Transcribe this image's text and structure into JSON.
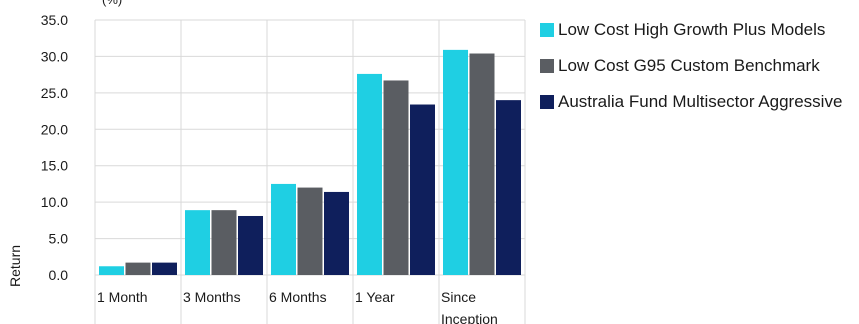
{
  "chart_data": {
    "type": "bar",
    "title": "",
    "title_fragment": "(%)",
    "xlabel": "",
    "ylabel": "Return",
    "ylim": [
      0,
      35
    ],
    "yticks": [
      "0.0",
      "5.0",
      "10.0",
      "15.0",
      "20.0",
      "25.0",
      "30.0",
      "35.0"
    ],
    "categories": [
      "1 Month",
      "3 Months",
      "6 Months",
      "1 Year",
      "Since Inception"
    ],
    "category_label_lines": [
      [
        "1 Month"
      ],
      [
        "3 Months"
      ],
      [
        "6 Months"
      ],
      [
        "1 Year"
      ],
      [
        "Since",
        "Inception"
      ]
    ],
    "grid": true,
    "legend_position": "right",
    "series": [
      {
        "name": "Low Cost High Growth Plus Models",
        "color": "#1fcfe3",
        "values": [
          1.2,
          8.9,
          12.5,
          27.6,
          30.9
        ]
      },
      {
        "name": "Low Cost G95 Custom Benchmark",
        "color": "#5a5d62",
        "values": [
          1.7,
          8.9,
          12.0,
          26.7,
          30.4
        ]
      },
      {
        "name": "Australia Fund Multisector Aggressive",
        "color": "#0f1f5c",
        "values": [
          1.7,
          8.1,
          11.4,
          23.4,
          24.0
        ]
      }
    ]
  }
}
